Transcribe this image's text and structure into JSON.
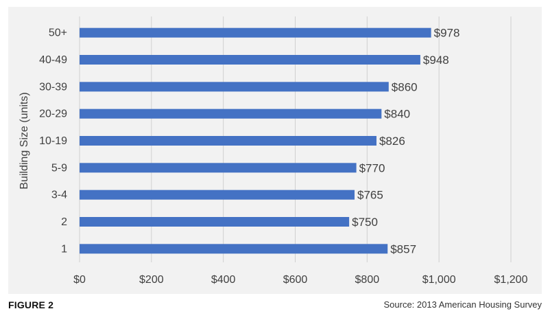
{
  "colors": {
    "bar": "#4472c4",
    "grid": "#d0d0d0",
    "text": "#404040",
    "panel": "#f2f2f2"
  },
  "chart_data": {
    "type": "bar",
    "orientation": "horizontal",
    "categories": [
      "1",
      "2",
      "3-4",
      "5-9",
      "10-19",
      "20-29",
      "30-39",
      "40-49",
      "50+"
    ],
    "values": [
      857,
      750,
      765,
      770,
      826,
      840,
      860,
      948,
      978
    ],
    "data_labels": [
      "$857",
      "$750",
      "$765",
      "$770",
      "$826",
      "$840",
      "$860",
      "$948",
      "$978"
    ],
    "title": "",
    "xlabel": "",
    "ylabel": "Building Size (units)",
    "xlim": [
      0,
      1200
    ],
    "xticks": [
      0,
      200,
      400,
      600,
      800,
      1000,
      1200
    ],
    "xtick_labels": [
      "$0",
      "$200",
      "$400",
      "$600",
      "$800",
      "$1,000",
      "$1,200"
    ],
    "grid": "vertical",
    "legend": "none"
  },
  "footer": {
    "figure_label": "FIGURE 2",
    "source": "Source: 2013 American Housing Survey"
  }
}
